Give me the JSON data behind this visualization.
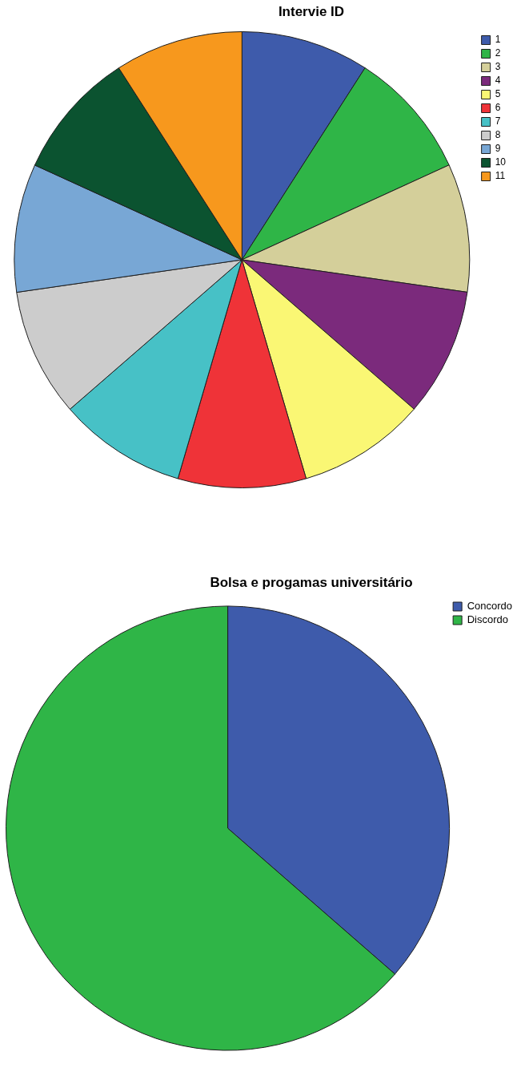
{
  "chart_data": [
    {
      "type": "pie",
      "title": "Intervie ID",
      "categories": [
        "1",
        "2",
        "3",
        "4",
        "5",
        "6",
        "7",
        "8",
        "9",
        "10",
        "11"
      ],
      "values": [
        9.09,
        9.09,
        9.09,
        9.09,
        9.09,
        9.09,
        9.09,
        9.09,
        9.09,
        9.09,
        9.1
      ],
      "colors": [
        "#3e5bab",
        "#2fb547",
        "#d4cf9a",
        "#7b2a7c",
        "#faf774",
        "#ef3338",
        "#47c1c6",
        "#cccccc",
        "#78a7d5",
        "#0b5330",
        "#f7981d"
      ],
      "legend": "top right"
    },
    {
      "type": "pie",
      "title": "Bolsa e progamas universitário",
      "categories": [
        "Concordo",
        "Discordo"
      ],
      "values": [
        36.4,
        63.6
      ],
      "colors": [
        "#3e5bab",
        "#2fb547"
      ],
      "legend": "top right"
    }
  ]
}
